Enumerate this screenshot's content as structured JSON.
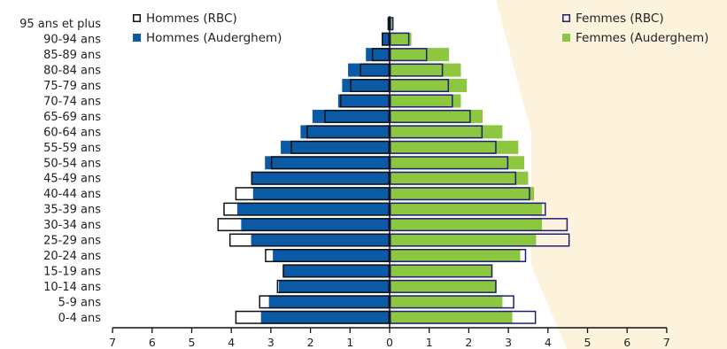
{
  "chart_data": {
    "type": "bar",
    "orientation": "horizontal-pyramid",
    "categories": [
      "0-4 ans",
      "5-9 ans",
      "10-14 ans",
      "15-19 ans",
      "20-24 ans",
      "25-29 ans",
      "30-34 ans",
      "35-39 ans",
      "40-44 ans",
      "45-49 ans",
      "50-54 ans",
      "55-59 ans",
      "60-64 ans",
      "65-69 ans",
      "70-74 ans",
      "75-79 ans",
      "80-84 ans",
      "85-89 ans",
      "90-94 ans",
      "95 ans et plus"
    ],
    "series": [
      {
        "name": "Hommes (RBC)",
        "side": "left",
        "style": "outline",
        "values": [
          3.9,
          3.3,
          2.85,
          2.7,
          3.15,
          4.05,
          4.35,
          4.2,
          3.9,
          3.5,
          3.0,
          2.5,
          2.1,
          1.65,
          1.25,
          1.0,
          0.75,
          0.45,
          0.2,
          0.05
        ]
      },
      {
        "name": "Hommes (Auderghem)",
        "side": "left",
        "style": "filled",
        "values": [
          3.25,
          3.05,
          2.8,
          2.7,
          2.95,
          3.5,
          3.75,
          3.85,
          3.45,
          3.5,
          3.15,
          2.75,
          2.25,
          1.95,
          1.3,
          1.2,
          1.05,
          0.6,
          0.2,
          0.05
        ]
      },
      {
        "name": "Femmes (RBC)",
        "side": "right",
        "style": "outline",
        "values": [
          3.7,
          3.15,
          2.7,
          2.6,
          3.45,
          4.55,
          4.5,
          3.95,
          3.55,
          3.2,
          3.0,
          2.7,
          2.35,
          2.05,
          1.6,
          1.5,
          1.35,
          0.95,
          0.5,
          0.1
        ]
      },
      {
        "name": "Femmes (Auderghem)",
        "side": "right",
        "style": "filled",
        "values": [
          3.1,
          2.85,
          2.7,
          2.6,
          3.3,
          3.7,
          3.85,
          3.85,
          3.65,
          3.5,
          3.4,
          3.25,
          2.85,
          2.35,
          1.8,
          1.95,
          1.8,
          1.5,
          0.55,
          0.1
        ]
      }
    ],
    "xticks": [
      "7",
      "6",
      "5",
      "4",
      "3",
      "2",
      "1",
      "0",
      "1",
      "2",
      "3",
      "4",
      "5",
      "6",
      "7"
    ],
    "xlim": [
      -7,
      7
    ],
    "xlabel": "",
    "ylabel": "",
    "title": "",
    "grid": false,
    "legend_placement": "top-left and top-right",
    "colors": {
      "hommes_rbc_outline": "#111111",
      "hommes_auderghem_fill": "#0a5aa6",
      "femmes_rbc_outline": "#1f1f7a",
      "femmes_auderghem_fill": "#8dc63f",
      "background_watermark": "#fdf3dd"
    }
  }
}
